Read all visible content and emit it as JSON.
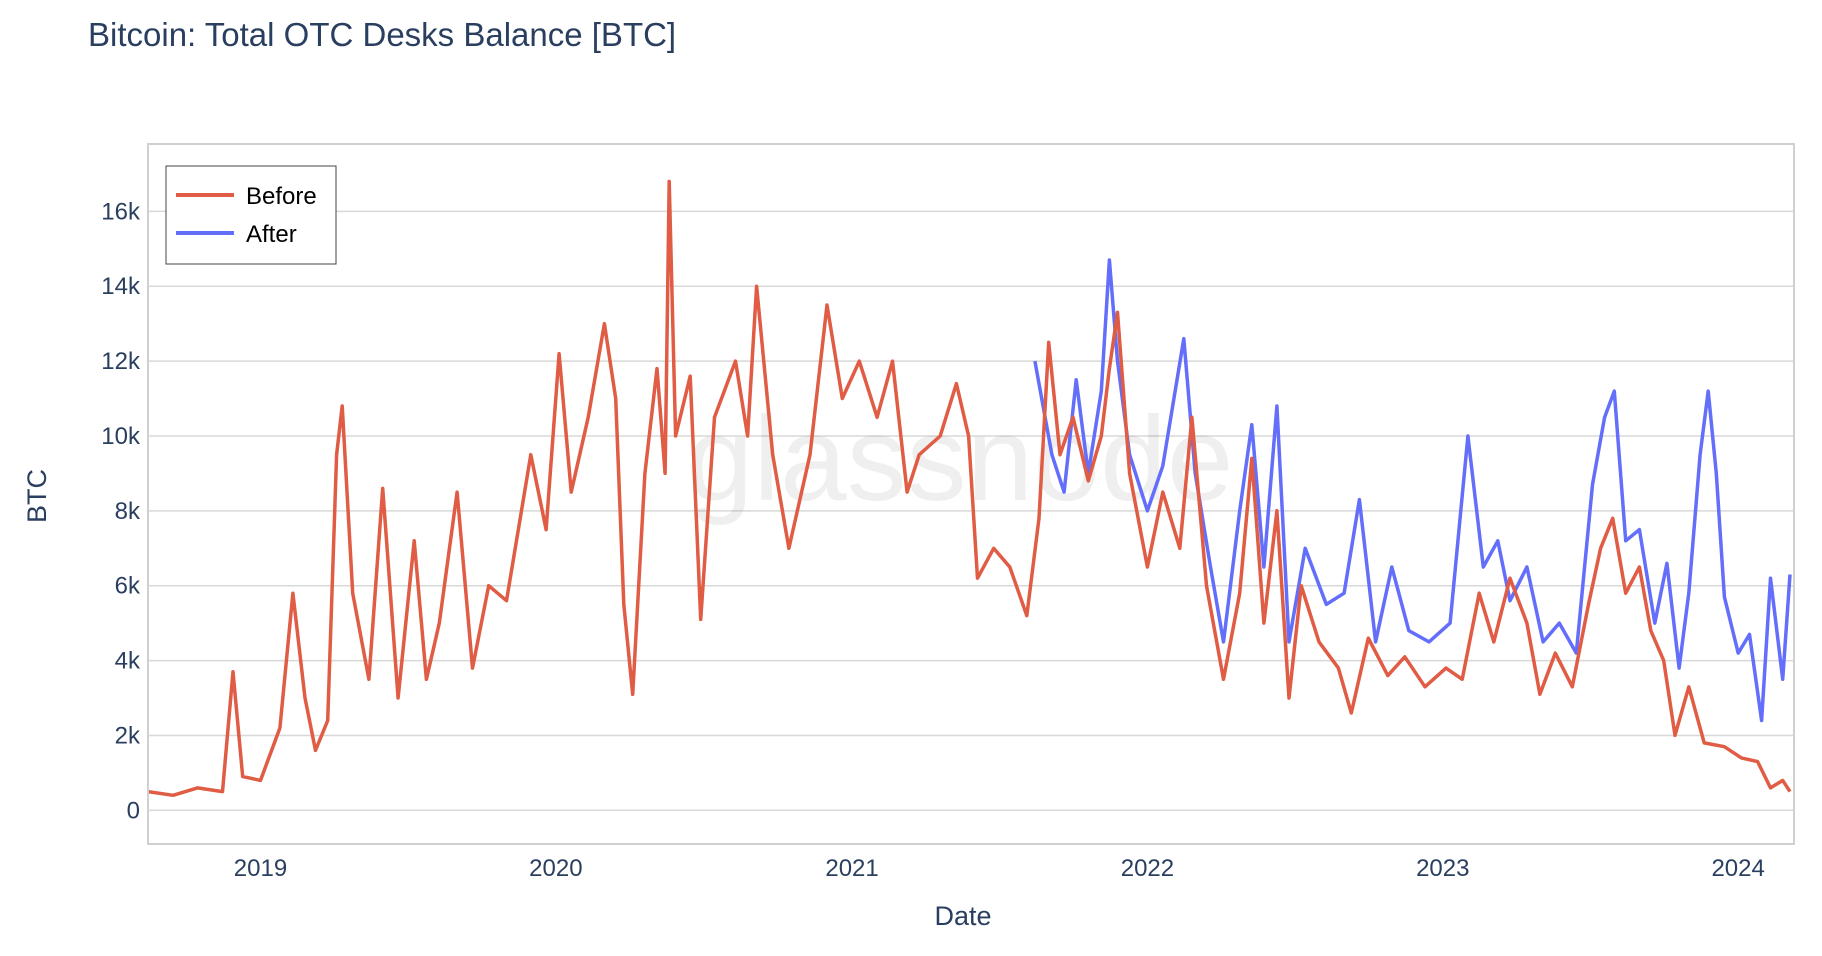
{
  "chart_data": {
    "type": "line",
    "title": "Bitcoin: Total OTC Desks Balance [BTC]",
    "xlabel": "Date",
    "ylabel": "BTC",
    "watermark": "glassnode",
    "x_ticks": [
      "2019",
      "2020",
      "2021",
      "2022",
      "2023",
      "2024"
    ],
    "y_ticks": [
      "0",
      "2k",
      "4k",
      "6k",
      "8k",
      "10k",
      "12k",
      "14k",
      "16k"
    ],
    "xlim": [
      "2018-08-15",
      "2024-03-10"
    ],
    "ylim": [
      -900,
      17800
    ],
    "grid": true,
    "legend_position": "top-left",
    "series": [
      {
        "name": "Before",
        "color": "#e05c44",
        "points": [
          [
            "2018-08-15",
            500
          ],
          [
            "2018-09-15",
            400
          ],
          [
            "2018-10-15",
            600
          ],
          [
            "2018-11-15",
            500
          ],
          [
            "2018-11-28",
            3700
          ],
          [
            "2018-12-10",
            900
          ],
          [
            "2019-01-01",
            800
          ],
          [
            "2019-01-25",
            2200
          ],
          [
            "2019-02-10",
            5800
          ],
          [
            "2019-02-25",
            3000
          ],
          [
            "2019-03-10",
            1600
          ],
          [
            "2019-03-25",
            2400
          ],
          [
            "2019-04-05",
            9500
          ],
          [
            "2019-04-12",
            10800
          ],
          [
            "2019-04-25",
            5800
          ],
          [
            "2019-05-15",
            3500
          ],
          [
            "2019-06-01",
            8600
          ],
          [
            "2019-06-20",
            3000
          ],
          [
            "2019-07-10",
            7200
          ],
          [
            "2019-07-25",
            3500
          ],
          [
            "2019-08-10",
            5000
          ],
          [
            "2019-09-01",
            8500
          ],
          [
            "2019-09-20",
            3800
          ],
          [
            "2019-10-10",
            6000
          ],
          [
            "2019-11-01",
            5600
          ],
          [
            "2019-12-01",
            9500
          ],
          [
            "2019-12-20",
            7500
          ],
          [
            "2020-01-05",
            12200
          ],
          [
            "2020-01-20",
            8500
          ],
          [
            "2020-02-10",
            10500
          ],
          [
            "2020-03-01",
            13000
          ],
          [
            "2020-03-15",
            11000
          ],
          [
            "2020-03-25",
            5500
          ],
          [
            "2020-04-05",
            3100
          ],
          [
            "2020-04-20",
            9000
          ],
          [
            "2020-05-05",
            11800
          ],
          [
            "2020-05-15",
            9000
          ],
          [
            "2020-05-20",
            16800
          ],
          [
            "2020-05-28",
            10000
          ],
          [
            "2020-06-15",
            11600
          ],
          [
            "2020-06-28",
            5100
          ],
          [
            "2020-07-15",
            10500
          ],
          [
            "2020-08-10",
            12000
          ],
          [
            "2020-08-25",
            10000
          ],
          [
            "2020-09-05",
            14000
          ],
          [
            "2020-09-25",
            9500
          ],
          [
            "2020-10-15",
            7000
          ],
          [
            "2020-11-10",
            9500
          ],
          [
            "2020-12-01",
            13500
          ],
          [
            "2020-12-20",
            11000
          ],
          [
            "2021-01-10",
            12000
          ],
          [
            "2021-02-01",
            10500
          ],
          [
            "2021-02-20",
            12000
          ],
          [
            "2021-03-10",
            8500
          ],
          [
            "2021-03-25",
            9500
          ],
          [
            "2021-04-20",
            10000
          ],
          [
            "2021-05-10",
            11400
          ],
          [
            "2021-05-25",
            10000
          ],
          [
            "2021-06-05",
            6200
          ],
          [
            "2021-06-25",
            7000
          ],
          [
            "2021-07-15",
            6500
          ],
          [
            "2021-08-05",
            5200
          ],
          [
            "2021-08-20",
            7800
          ],
          [
            "2021-09-01",
            12500
          ],
          [
            "2021-09-15",
            9500
          ],
          [
            "2021-10-01",
            10500
          ],
          [
            "2021-10-20",
            8800
          ],
          [
            "2021-11-05",
            10000
          ],
          [
            "2021-11-15",
            11800
          ],
          [
            "2021-11-25",
            13300
          ],
          [
            "2021-12-10",
            9000
          ],
          [
            "2022-01-01",
            6500
          ],
          [
            "2022-01-20",
            8500
          ],
          [
            "2022-02-10",
            7000
          ],
          [
            "2022-02-25",
            10500
          ],
          [
            "2022-03-15",
            6000
          ],
          [
            "2022-04-05",
            3500
          ],
          [
            "2022-04-25",
            5800
          ],
          [
            "2022-05-10",
            9400
          ],
          [
            "2022-05-25",
            5000
          ],
          [
            "2022-06-10",
            8000
          ],
          [
            "2022-06-25",
            3000
          ],
          [
            "2022-07-10",
            6000
          ],
          [
            "2022-08-01",
            4500
          ],
          [
            "2022-08-25",
            3800
          ],
          [
            "2022-09-10",
            2600
          ],
          [
            "2022-10-01",
            4600
          ],
          [
            "2022-10-25",
            3600
          ],
          [
            "2022-11-15",
            4100
          ],
          [
            "2022-12-10",
            3300
          ],
          [
            "2023-01-05",
            3800
          ],
          [
            "2023-01-25",
            3500
          ],
          [
            "2023-02-15",
            5800
          ],
          [
            "2023-03-05",
            4500
          ],
          [
            "2023-03-25",
            6200
          ],
          [
            "2023-04-15",
            5000
          ],
          [
            "2023-05-01",
            3100
          ],
          [
            "2023-05-20",
            4200
          ],
          [
            "2023-06-10",
            3300
          ],
          [
            "2023-06-30",
            5500
          ],
          [
            "2023-07-15",
            7000
          ],
          [
            "2023-07-30",
            7800
          ],
          [
            "2023-08-15",
            5800
          ],
          [
            "2023-09-01",
            6500
          ],
          [
            "2023-09-15",
            4800
          ],
          [
            "2023-10-01",
            4000
          ],
          [
            "2023-10-15",
            2000
          ],
          [
            "2023-11-01",
            3300
          ],
          [
            "2023-11-20",
            1800
          ],
          [
            "2023-12-15",
            1700
          ],
          [
            "2024-01-05",
            1400
          ],
          [
            "2024-01-25",
            1300
          ],
          [
            "2024-02-10",
            600
          ],
          [
            "2024-02-25",
            800
          ],
          [
            "2024-03-05",
            500
          ]
        ]
      },
      {
        "name": "After",
        "color": "#636efa",
        "points": [
          [
            "2021-08-15",
            12000
          ],
          [
            "2021-09-05",
            9500
          ],
          [
            "2021-09-20",
            8500
          ],
          [
            "2021-10-05",
            11500
          ],
          [
            "2021-10-20",
            9000
          ],
          [
            "2021-11-05",
            11200
          ],
          [
            "2021-11-15",
            14700
          ],
          [
            "2021-11-25",
            12000
          ],
          [
            "2021-12-10",
            9500
          ],
          [
            "2022-01-01",
            8000
          ],
          [
            "2022-01-20",
            9200
          ],
          [
            "2022-02-15",
            12600
          ],
          [
            "2022-03-01",
            9000
          ],
          [
            "2022-03-20",
            6500
          ],
          [
            "2022-04-05",
            4500
          ],
          [
            "2022-04-25",
            8000
          ],
          [
            "2022-05-10",
            10300
          ],
          [
            "2022-05-25",
            6500
          ],
          [
            "2022-06-10",
            10800
          ],
          [
            "2022-06-25",
            4500
          ],
          [
            "2022-07-15",
            7000
          ],
          [
            "2022-08-10",
            5500
          ],
          [
            "2022-09-01",
            5800
          ],
          [
            "2022-09-20",
            8300
          ],
          [
            "2022-10-10",
            4500
          ],
          [
            "2022-10-30",
            6500
          ],
          [
            "2022-11-20",
            4800
          ],
          [
            "2022-12-15",
            4500
          ],
          [
            "2023-01-10",
            5000
          ],
          [
            "2023-02-01",
            10000
          ],
          [
            "2023-02-20",
            6500
          ],
          [
            "2023-03-10",
            7200
          ],
          [
            "2023-03-25",
            5600
          ],
          [
            "2023-04-15",
            6500
          ],
          [
            "2023-05-05",
            4500
          ],
          [
            "2023-05-25",
            5000
          ],
          [
            "2023-06-15",
            4200
          ],
          [
            "2023-07-05",
            8700
          ],
          [
            "2023-07-20",
            10500
          ],
          [
            "2023-08-01",
            11200
          ],
          [
            "2023-08-15",
            7200
          ],
          [
            "2023-09-01",
            7500
          ],
          [
            "2023-09-20",
            5000
          ],
          [
            "2023-10-05",
            6600
          ],
          [
            "2023-10-20",
            3800
          ],
          [
            "2023-11-01",
            5800
          ],
          [
            "2023-11-15",
            9500
          ],
          [
            "2023-11-25",
            11200
          ],
          [
            "2023-12-05",
            9000
          ],
          [
            "2023-12-15",
            5700
          ],
          [
            "2024-01-01",
            4200
          ],
          [
            "2024-01-15",
            4700
          ],
          [
            "2024-01-30",
            2400
          ],
          [
            "2024-02-10",
            6200
          ],
          [
            "2024-02-25",
            3500
          ],
          [
            "2024-03-05",
            6300
          ]
        ]
      }
    ]
  }
}
